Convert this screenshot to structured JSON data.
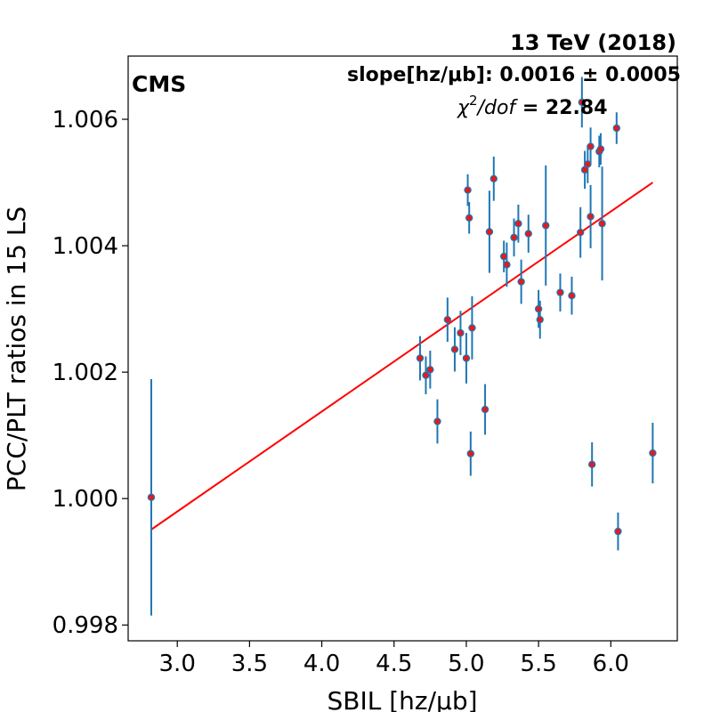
{
  "chart_data": {
    "type": "scatter",
    "title": "13 TeV (2018)",
    "experiment_label": "CMS",
    "annotations": {
      "slope": "slope[hz/μb]: 0.0016 ± 0.0005",
      "chi2_symbol": "χ",
      "chi2_sup": "2",
      "chi2_div": "/dof",
      "chi2_value": " = 22.84"
    },
    "xlabel": "SBIL [hz/μb]",
    "ylabel": "PCC/PLT ratios in 15 LS",
    "xlim": [
      2.66,
      6.46
    ],
    "ylim": [
      0.99775,
      1.007
    ],
    "xticks": [
      3.0,
      3.5,
      4.0,
      4.5,
      5.0,
      5.5,
      6.0
    ],
    "xtick_labels": [
      "3.0",
      "3.5",
      "4.0",
      "4.5",
      "5.0",
      "5.5",
      "6.0"
    ],
    "yticks": [
      0.998,
      1.0,
      1.002,
      1.004,
      1.006
    ],
    "ytick_labels": [
      "0.998",
      "1.000",
      "1.002",
      "1.004",
      "1.006"
    ],
    "grid": false,
    "marker_color": "#e41a1c",
    "errorbar_color": "#1f77b4",
    "fit_color": "#ff0000",
    "fit_line": {
      "x": [
        2.82,
        6.29
      ],
      "y": [
        0.99951,
        1.005
      ]
    },
    "points": [
      {
        "x": 2.82,
        "y": 1.00002,
        "err": 0.00187
      },
      {
        "x": 4.68,
        "y": 1.00222,
        "err": 0.00035
      },
      {
        "x": 4.72,
        "y": 1.00195,
        "err": 0.0003
      },
      {
        "x": 4.75,
        "y": 1.00204,
        "err": 0.0003
      },
      {
        "x": 4.8,
        "y": 1.00122,
        "err": 0.00035
      },
      {
        "x": 4.87,
        "y": 1.00283,
        "err": 0.00035
      },
      {
        "x": 4.92,
        "y": 1.00236,
        "err": 0.00035
      },
      {
        "x": 4.96,
        "y": 1.00262,
        "err": 0.00035
      },
      {
        "x": 5.0,
        "y": 1.00222,
        "err": 0.0004
      },
      {
        "x": 5.01,
        "y": 1.00488,
        "err": 0.00025
      },
      {
        "x": 5.02,
        "y": 1.00444,
        "err": 0.00025
      },
      {
        "x": 5.03,
        "y": 1.00071,
        "err": 0.00035
      },
      {
        "x": 5.04,
        "y": 1.0027,
        "err": 0.0005
      },
      {
        "x": 5.13,
        "y": 1.00141,
        "err": 0.0004
      },
      {
        "x": 5.16,
        "y": 1.00422,
        "err": 0.00065
      },
      {
        "x": 5.19,
        "y": 1.00506,
        "err": 0.00035
      },
      {
        "x": 5.26,
        "y": 1.00383,
        "err": 0.00025
      },
      {
        "x": 5.28,
        "y": 1.0037,
        "err": 0.00035
      },
      {
        "x": 5.33,
        "y": 1.00413,
        "err": 0.0003
      },
      {
        "x": 5.36,
        "y": 1.00435,
        "err": 0.0003
      },
      {
        "x": 5.38,
        "y": 1.00343,
        "err": 0.00035
      },
      {
        "x": 5.43,
        "y": 1.00419,
        "err": 0.0003
      },
      {
        "x": 5.5,
        "y": 1.003,
        "err": 0.0003
      },
      {
        "x": 5.51,
        "y": 1.00283,
        "err": 0.0003
      },
      {
        "x": 5.55,
        "y": 1.00432,
        "err": 0.00095
      },
      {
        "x": 5.65,
        "y": 1.00326,
        "err": 0.0003
      },
      {
        "x": 5.73,
        "y": 1.00321,
        "err": 0.0003
      },
      {
        "x": 5.79,
        "y": 1.00421,
        "err": 0.0004
      },
      {
        "x": 5.8,
        "y": 1.00627,
        "err": 0.0004
      },
      {
        "x": 5.82,
        "y": 1.0052,
        "err": 0.0003
      },
      {
        "x": 5.84,
        "y": 1.00529,
        "err": 0.0003
      },
      {
        "x": 5.86,
        "y": 1.00557,
        "err": 0.0003
      },
      {
        "x": 5.86,
        "y": 1.00446,
        "err": 0.0005
      },
      {
        "x": 5.87,
        "y": 1.00054,
        "err": 0.00035
      },
      {
        "x": 5.92,
        "y": 1.00549,
        "err": 0.00025
      },
      {
        "x": 5.93,
        "y": 1.00553,
        "err": 0.00025
      },
      {
        "x": 5.94,
        "y": 1.00435,
        "err": 0.0009
      },
      {
        "x": 6.04,
        "y": 1.00586,
        "err": 0.00025
      },
      {
        "x": 6.05,
        "y": 0.99948,
        "err": 0.0003
      },
      {
        "x": 6.29,
        "y": 1.00072,
        "err": 0.00048
      }
    ]
  }
}
